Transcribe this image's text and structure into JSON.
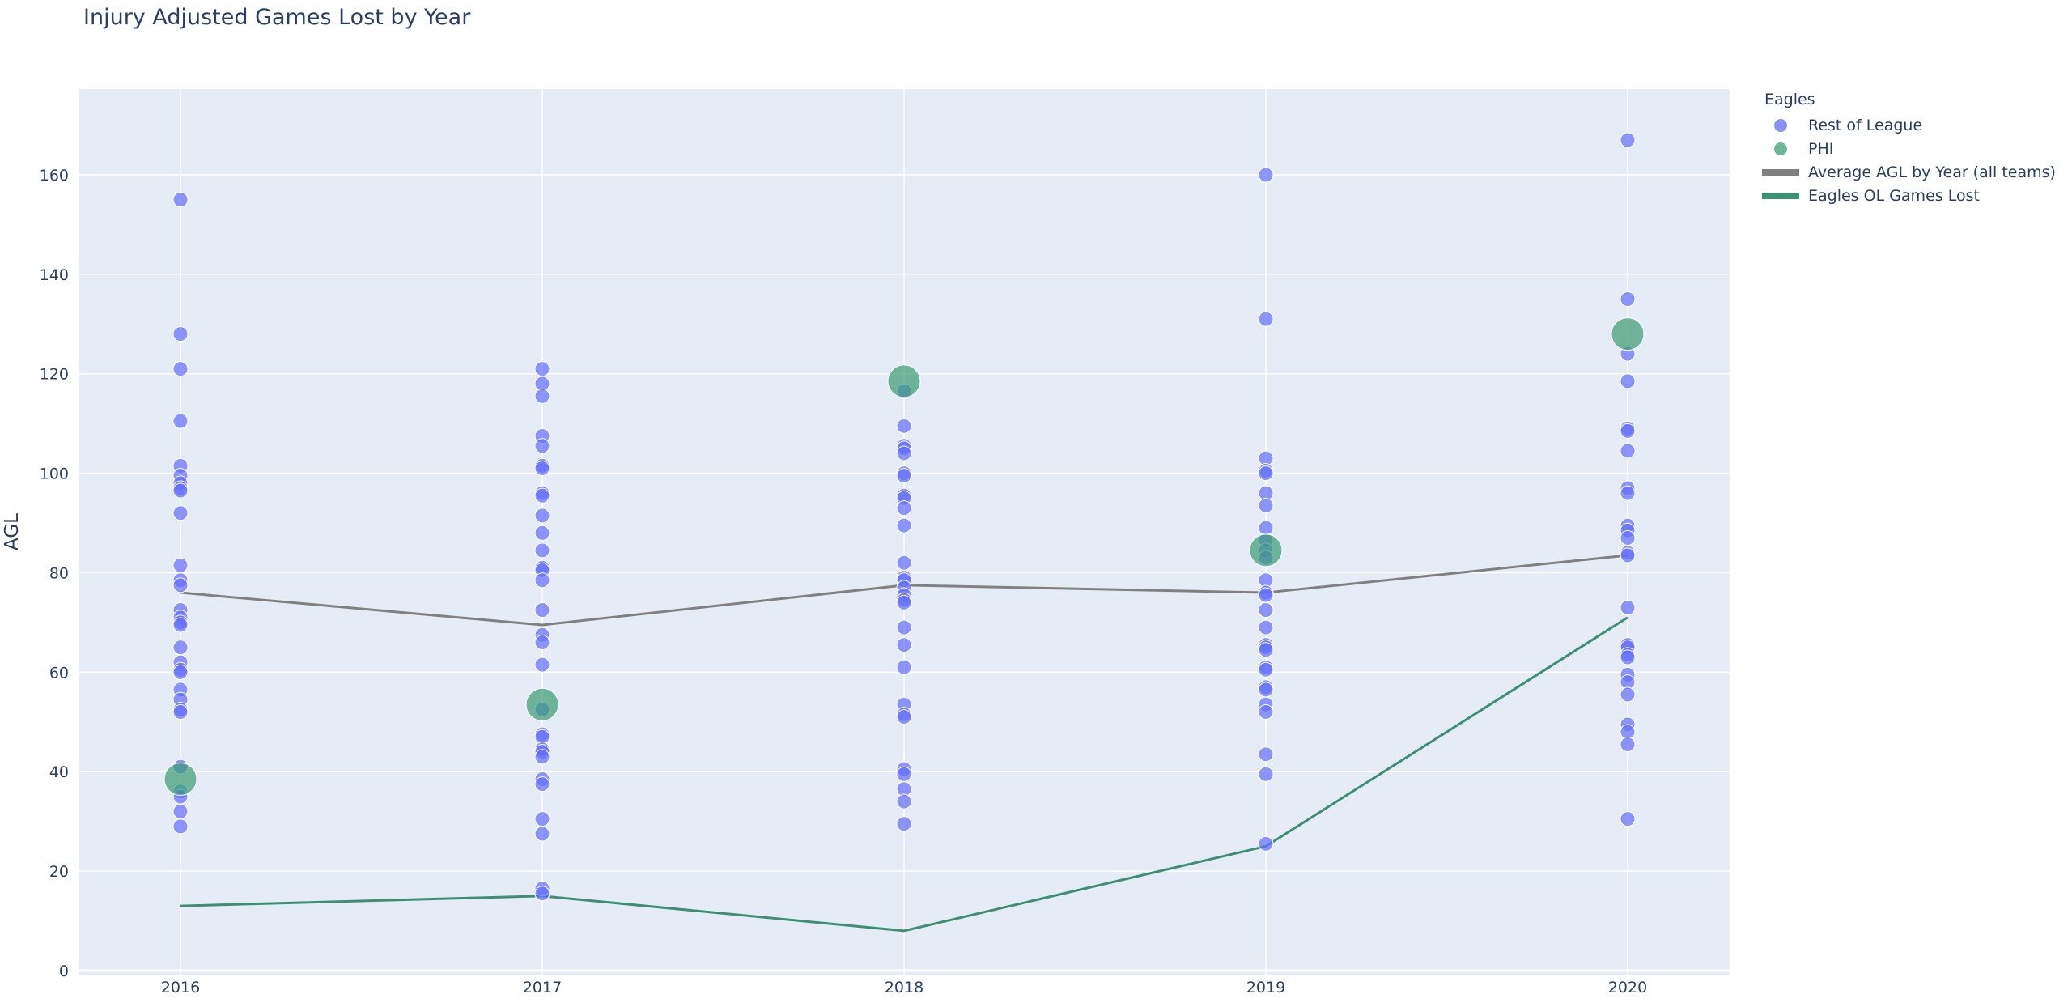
{
  "title": "Injury Adjusted Games Lost by Year",
  "colors": {
    "plot_bg": "#e5ecf6",
    "grid": "#ffffff",
    "rest_of_league": "#636efa",
    "phi": "#3a9b74",
    "average_line": "#808080",
    "eagles_line": "#3d8f72"
  },
  "legend": {
    "title": "Eagles",
    "items": [
      {
        "label": "Rest of League",
        "symbol": "dot",
        "color": "#8a93f5"
      },
      {
        "label": "PHI",
        "symbol": "dot",
        "color": "#6cb89b"
      },
      {
        "label": "Average AGL by Year (all teams)",
        "symbol": "line",
        "color": "#808080"
      },
      {
        "label": "Eagles OL Games Lost",
        "symbol": "line",
        "color": "#3d8f72"
      }
    ]
  },
  "chart_data": {
    "type": "scatter",
    "title": "Injury Adjusted Games Lost by Year",
    "xlabel": "",
    "ylabel": "AGL",
    "x_categories": [
      "2016",
      "2017",
      "2018",
      "2019",
      "2020"
    ],
    "ylim": [
      0,
      175
    ],
    "yticks": [
      0,
      20,
      40,
      60,
      80,
      100,
      120,
      140,
      160
    ],
    "grid": true,
    "legend_position": "right",
    "legend_title": "Eagles",
    "series": [
      {
        "name": "Rest of League",
        "mode": "markers",
        "points": {
          "2016": [
            155,
            128,
            121,
            110.5,
            101.5,
            99.5,
            98,
            97,
            96.5,
            92,
            81.5,
            78.5,
            77.5,
            72.5,
            71,
            70,
            69.5,
            65,
            62,
            60.5,
            60,
            56.5,
            54.5,
            52.5,
            52,
            41,
            36,
            35,
            32,
            29
          ],
          "2017": [
            121,
            118,
            115.5,
            107.5,
            105.5,
            101.5,
            101,
            96,
            95.5,
            91.5,
            88,
            84.5,
            81,
            80.5,
            78.5,
            72.5,
            67.5,
            66,
            61.5,
            52.5,
            47.5,
            47,
            44.5,
            44,
            43,
            38.5,
            37.5,
            30.5,
            27.5,
            16.5,
            15.5
          ],
          "2018": [
            116.5,
            109.5,
            105.5,
            105,
            104,
            100,
            99.5,
            95.5,
            95,
            93,
            89.5,
            82,
            79,
            78.5,
            77,
            75.5,
            74.5,
            74,
            69,
            65.5,
            61,
            53.5,
            51.5,
            51,
            40.5,
            39.5,
            36.5,
            34,
            29.5
          ],
          "2019": [
            160,
            131,
            103,
            100.5,
            100,
            96,
            93.5,
            89,
            86.5,
            84.5,
            83,
            78.5,
            76,
            75.5,
            72.5,
            69,
            65.5,
            65,
            64.5,
            61,
            60.5,
            57,
            56.5,
            53.5,
            52,
            43.5,
            39.5,
            25.5
          ],
          "2020": [
            167,
            135,
            124,
            118.5,
            109,
            108.5,
            104.5,
            97,
            96,
            89.5,
            88.5,
            87,
            84,
            83.5,
            73,
            65.5,
            65,
            63.5,
            63,
            59.5,
            58,
            55.5,
            49.5,
            48,
            45.5,
            30.5
          ]
        },
        "marker_size": 18,
        "color": "#636efa",
        "opacity": 0.7
      },
      {
        "name": "PHI",
        "mode": "markers",
        "x": [
          "2016",
          "2017",
          "2018",
          "2019",
          "2020"
        ],
        "y": [
          38.5,
          53.5,
          118.5,
          84.5,
          128
        ],
        "marker_size": 40,
        "color": "#3a9b74",
        "opacity": 0.7
      },
      {
        "name": "Average AGL by Year (all teams)",
        "mode": "lines",
        "x": [
          "2016",
          "2017",
          "2018",
          "2019",
          "2020"
        ],
        "y": [
          76,
          69.5,
          77.5,
          76,
          83.5
        ],
        "color": "#808080"
      },
      {
        "name": "Eagles OL Games Lost",
        "mode": "lines",
        "x": [
          "2016",
          "2017",
          "2018",
          "2019",
          "2020"
        ],
        "y": [
          13,
          15,
          8,
          25,
          71
        ],
        "color": "#3d8f72"
      }
    ]
  }
}
